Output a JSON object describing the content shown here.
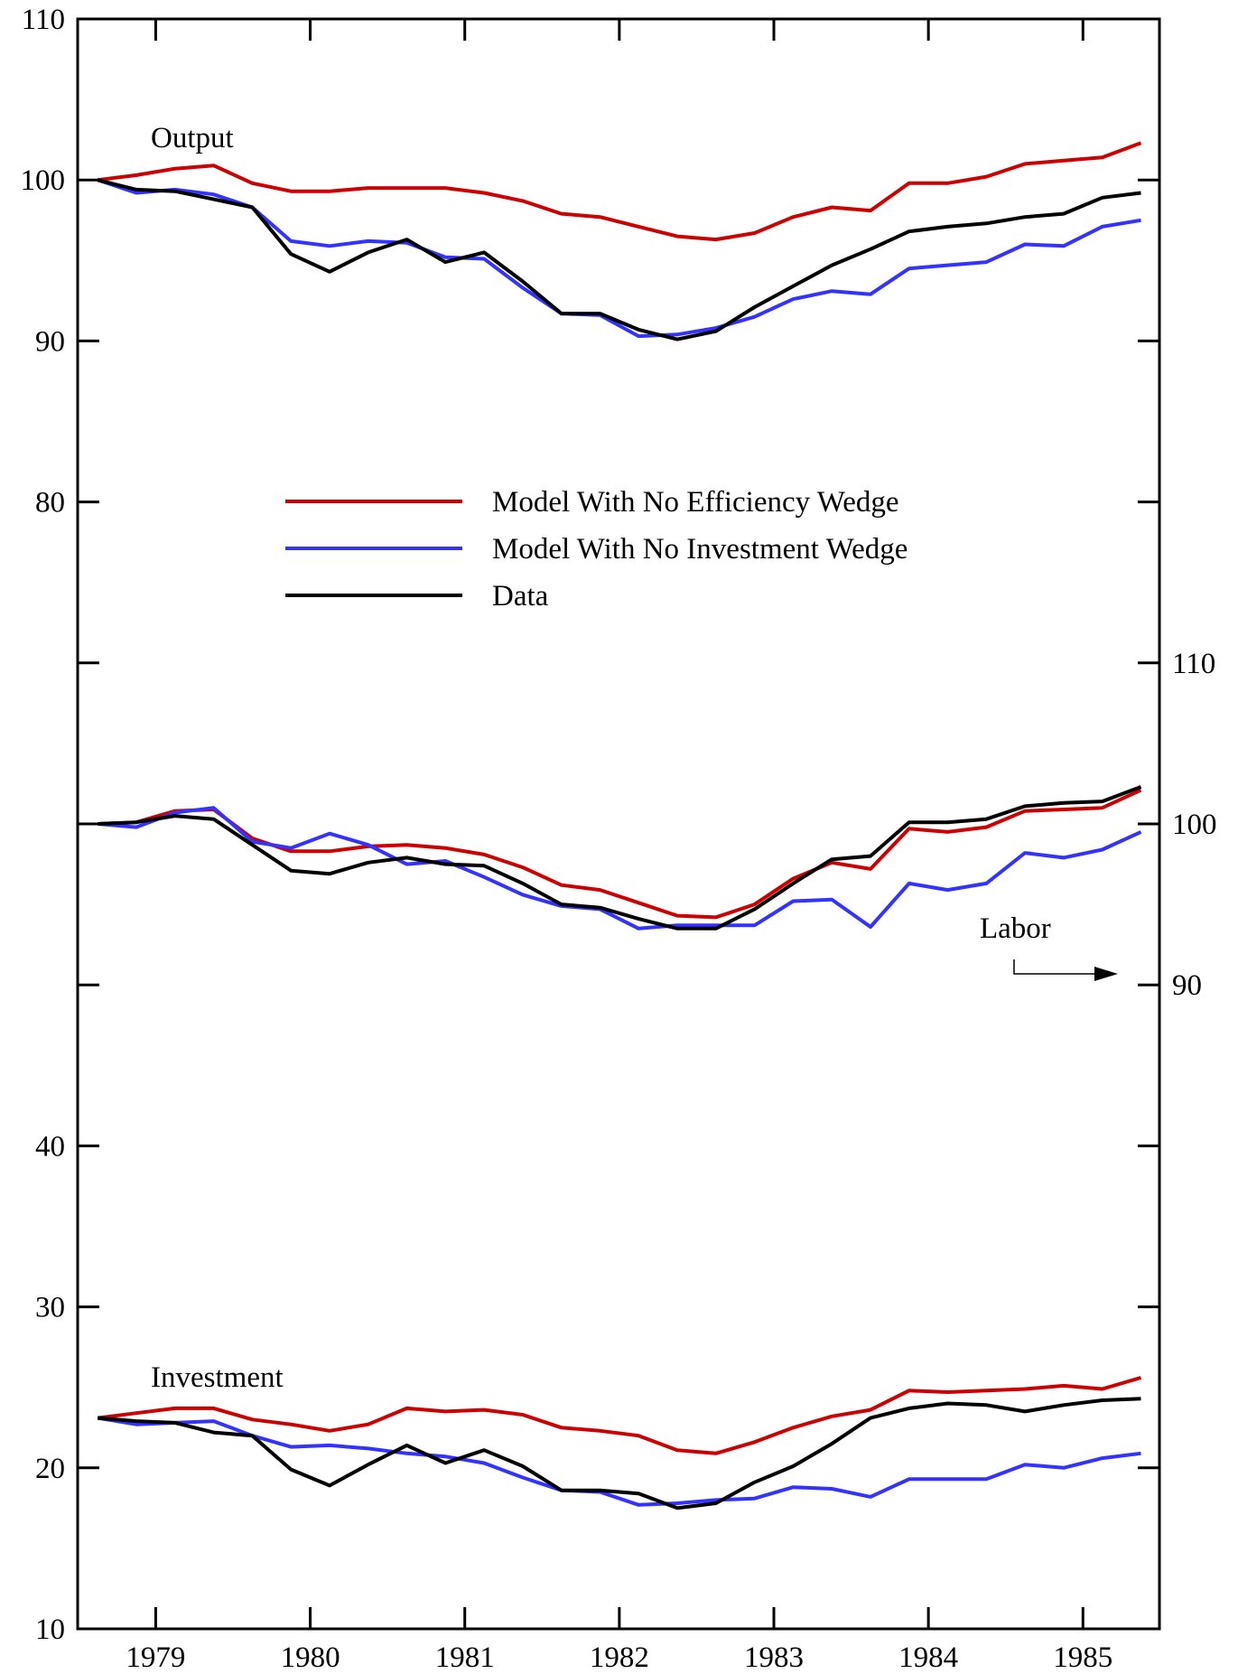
{
  "chart_data": {
    "type": "line",
    "x": [
      1979.0,
      1979.25,
      1979.5,
      1979.75,
      1980.0,
      1980.25,
      1980.5,
      1980.75,
      1981.0,
      1981.25,
      1981.5,
      1981.75,
      1982.0,
      1982.25,
      1982.5,
      1982.75,
      1983.0,
      1983.25,
      1983.5,
      1983.75,
      1984.0,
      1984.25,
      1984.5,
      1984.75,
      1985.0,
      1985.25,
      1985.5,
      1985.75
    ],
    "xlim": [
      1978.87,
      1985.87
    ],
    "xticks": [
      {
        "value": 1979.375,
        "label": "1979"
      },
      {
        "value": 1980.375,
        "label": "1980"
      },
      {
        "value": 1981.375,
        "label": "1981"
      },
      {
        "value": 1982.375,
        "label": "1982"
      },
      {
        "value": 1983.375,
        "label": "1983"
      },
      {
        "value": 1984.375,
        "label": "1984"
      },
      {
        "value": 1985.375,
        "label": "1985"
      }
    ],
    "ylim": [
      10,
      110
    ],
    "yticks": [
      10,
      20,
      30,
      40,
      80,
      90,
      100,
      110
    ],
    "yminorticks": [
      50,
      60,
      70
    ],
    "y2lim": [
      50,
      150
    ],
    "y2ticks": [
      90,
      100,
      110
    ],
    "series": [
      {
        "name": "Model With No Efficiency Wedge",
        "color": "#cc0000"
      },
      {
        "name": "Model With No Investment Wedge",
        "color": "#3333ff"
      },
      {
        "name": "Data",
        "color": "#000000"
      }
    ],
    "panels": [
      {
        "label": "Output",
        "values": [
          [
            100,
            100.3,
            100.7,
            100.9,
            99.8,
            99.3,
            99.3,
            99.5,
            99.5,
            99.5,
            99.2,
            98.7,
            97.9,
            97.7,
            97.1,
            96.5,
            96.3,
            96.7,
            97.7,
            98.3,
            98.1,
            99.8,
            99.8,
            100.2,
            101,
            101.2,
            101.4,
            102.3
          ],
          [
            100,
            99.2,
            99.4,
            99.1,
            98.3,
            96.2,
            95.9,
            96.2,
            96.1,
            95.2,
            95.1,
            93.3,
            91.7,
            91.6,
            90.3,
            90.4,
            90.8,
            91.5,
            92.6,
            93.1,
            92.9,
            94.5,
            94.7,
            94.9,
            96,
            95.9,
            97.1,
            97.5
          ],
          [
            100,
            99.4,
            99.3,
            98.8,
            98.3,
            95.4,
            94.3,
            95.5,
            96.3,
            94.9,
            95.5,
            93.7,
            91.7,
            91.7,
            90.7,
            90.1,
            90.6,
            92.1,
            93.4,
            94.7,
            95.7,
            96.8,
            97.1,
            97.3,
            97.7,
            97.9,
            98.9,
            99.2
          ]
        ]
      },
      {
        "label": "Labor",
        "axis": "y2",
        "values": [
          [
            100,
            100.1,
            100.8,
            100.9,
            99.1,
            98.3,
            98.3,
            98.6,
            98.7,
            98.5,
            98.1,
            97.3,
            96.2,
            95.9,
            95.1,
            94.3,
            94.2,
            95,
            96.6,
            97.6,
            97.2,
            99.7,
            99.5,
            99.8,
            100.8,
            100.9,
            101,
            102.1
          ],
          [
            100,
            99.8,
            100.7,
            101,
            98.9,
            98.5,
            99.4,
            98.7,
            97.5,
            97.7,
            96.7,
            95.6,
            94.9,
            94.7,
            93.5,
            93.7,
            93.7,
            93.7,
            95.2,
            95.3,
            93.6,
            96.3,
            95.9,
            96.3,
            98.2,
            97.9,
            98.4,
            99.5
          ],
          [
            100,
            100.1,
            100.5,
            100.3,
            98.7,
            97.1,
            96.9,
            97.6,
            97.9,
            97.5,
            97.4,
            96.3,
            95,
            94.8,
            94.1,
            93.5,
            93.5,
            94.7,
            96.3,
            97.8,
            98,
            100.1,
            100.1,
            100.3,
            101.1,
            101.3,
            101.4,
            102.3
          ]
        ]
      },
      {
        "label": "Investment",
        "values": [
          [
            23.1,
            23.4,
            23.7,
            23.7,
            23,
            22.7,
            22.3,
            22.7,
            23.7,
            23.5,
            23.6,
            23.3,
            22.5,
            22.3,
            22,
            21.1,
            20.9,
            21.6,
            22.5,
            23.2,
            23.6,
            24.8,
            24.7,
            24.8,
            24.9,
            25.1,
            24.9,
            25.6
          ],
          [
            23.1,
            22.7,
            22.8,
            22.9,
            22,
            21.3,
            21.4,
            21.2,
            20.9,
            20.7,
            20.3,
            19.4,
            18.6,
            18.5,
            17.7,
            17.8,
            18,
            18.1,
            18.8,
            18.7,
            18.2,
            19.3,
            19.3,
            19.3,
            20.2,
            20,
            20.6,
            20.9
          ],
          [
            23.1,
            22.9,
            22.8,
            22.2,
            22,
            19.9,
            18.9,
            20.2,
            21.4,
            20.3,
            21.1,
            20.1,
            18.6,
            18.6,
            18.4,
            17.5,
            17.8,
            19.1,
            20.1,
            21.5,
            23.1,
            23.7,
            24,
            23.9,
            23.5,
            23.9,
            24.2,
            24.3
          ]
        ]
      }
    ]
  }
}
